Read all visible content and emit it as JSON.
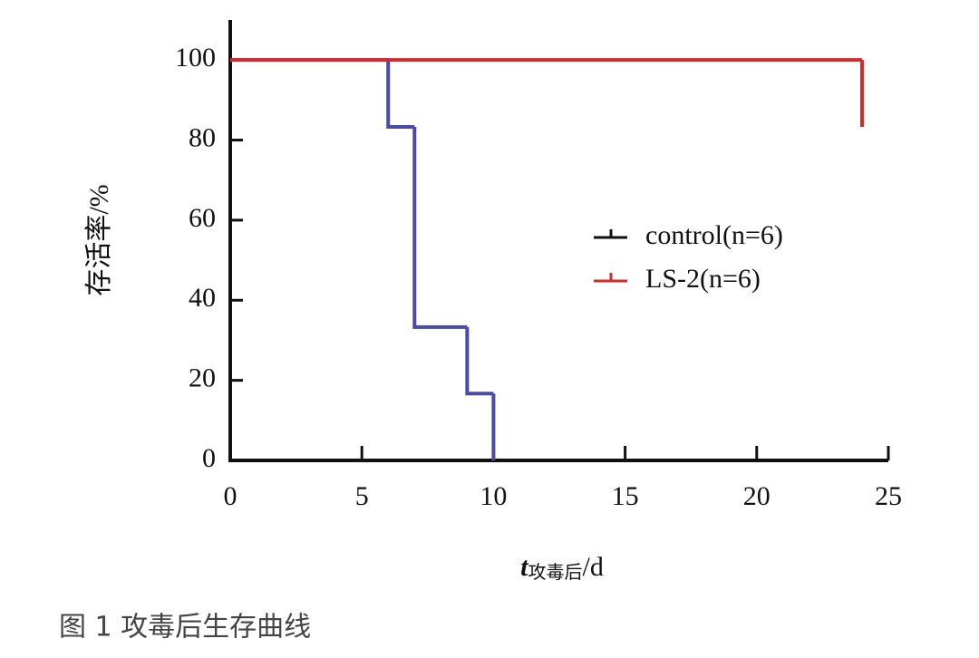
{
  "chart_data": {
    "type": "step",
    "y_label": "存活率/%",
    "x_label": "t",
    "x_label_subscript": "攻毒后",
    "x_label_unit": "/d",
    "xlim": [
      0,
      25
    ],
    "xticks": [
      0,
      5,
      10,
      15,
      20,
      25
    ],
    "ylim": [
      0,
      110
    ],
    "yticks": [
      0,
      20,
      40,
      60,
      80,
      100
    ],
    "series": [
      {
        "name": "control(n=6)",
        "color": "#4a4aa8",
        "legend_color": "#111111",
        "x": [
          0,
          6,
          7,
          9,
          10
        ],
        "values": [
          100,
          83.3,
          33.3,
          16.7,
          0
        ]
      },
      {
        "name": "LS-2(n=6)",
        "color": "#d42a2a",
        "legend_color": "#d42a2a",
        "x": [
          0,
          24
        ],
        "values": [
          100,
          83.3
        ]
      }
    ]
  },
  "caption": "图 1  攻毒后生存曲线"
}
